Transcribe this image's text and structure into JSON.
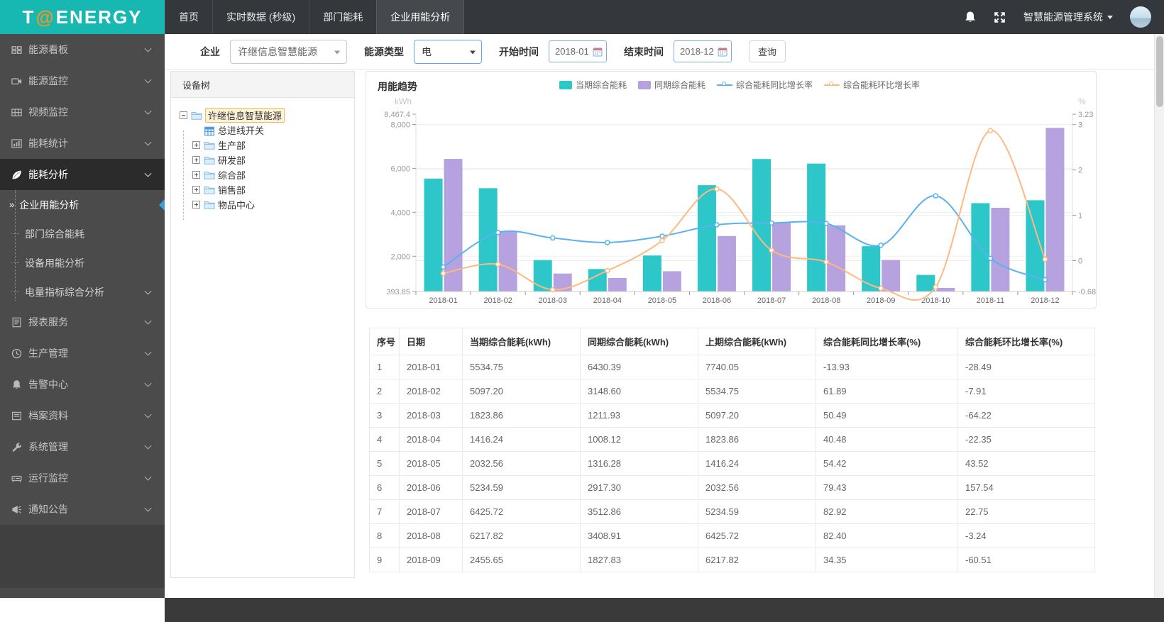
{
  "topbar": {
    "logo_t": "T",
    "logo_at": "@",
    "logo_rest": "ENERGY",
    "tabs": [
      {
        "label": "首页",
        "active": false
      },
      {
        "label": "实时数据 (秒级)",
        "active": false
      },
      {
        "label": "部门能耗",
        "active": false
      },
      {
        "label": "企业用能分析",
        "active": true
      }
    ],
    "system_name": "智慧能源管理系统"
  },
  "sidebar": {
    "items": [
      {
        "label": "能源看板",
        "icon": "dashboard",
        "chevron": true,
        "active": false
      },
      {
        "label": "能源监控",
        "icon": "camera",
        "chevron": true,
        "active": false
      },
      {
        "label": "视频监控",
        "icon": "film",
        "chevron": true,
        "active": false
      },
      {
        "label": "能耗统计",
        "icon": "stats",
        "chevron": true,
        "active": false
      },
      {
        "label": "能耗分析",
        "icon": "leaf",
        "chevron": true,
        "active": true,
        "children": [
          {
            "label": "企业用能分析",
            "active": true,
            "chevron": false
          },
          {
            "label": "部门综合能耗",
            "active": false,
            "chevron": false
          },
          {
            "label": "设备用能分析",
            "active": false,
            "chevron": false
          },
          {
            "label": "电量指标综合分析",
            "active": false,
            "chevron": true
          }
        ]
      },
      {
        "label": "报表服务",
        "icon": "report",
        "chevron": true,
        "active": false
      },
      {
        "label": "生产管理",
        "icon": "clock",
        "chevron": true,
        "active": false
      },
      {
        "label": "告警中心",
        "icon": "bell",
        "chevron": true,
        "active": false
      },
      {
        "label": "档案资料",
        "icon": "archive",
        "chevron": true,
        "active": false
      },
      {
        "label": "系统管理",
        "icon": "wrench",
        "chevron": true,
        "active": false
      },
      {
        "label": "运行监控",
        "icon": "drive",
        "chevron": true,
        "active": false
      },
      {
        "label": "通知公告",
        "icon": "megaphone",
        "chevron": true,
        "active": false
      }
    ]
  },
  "filters": {
    "company_label": "企业",
    "company_value": "许继信息智慧能源",
    "energy_label": "能源类型",
    "energy_value": "电",
    "start_label": "开始时间",
    "start_value": "2018-01",
    "end_label": "结束时间",
    "end_value": "2018-12",
    "query_label": "查询"
  },
  "tree": {
    "header": "设备树",
    "nodes": [
      {
        "label": "许继信息智慧能源",
        "level": 0,
        "expander": "minus",
        "icon": "folder",
        "selected": true
      },
      {
        "label": "总进线开关",
        "level": 1,
        "expander": "none",
        "icon": "meter",
        "selected": false
      },
      {
        "label": "生产部",
        "level": 1,
        "expander": "plus",
        "icon": "folder",
        "selected": false
      },
      {
        "label": "研发部",
        "level": 1,
        "expander": "plus",
        "icon": "folder",
        "selected": false
      },
      {
        "label": "综合部",
        "level": 1,
        "expander": "plus",
        "icon": "folder",
        "selected": false
      },
      {
        "label": "销售部",
        "level": 1,
        "expander": "plus",
        "icon": "folder",
        "selected": false
      },
      {
        "label": "物品中心",
        "level": 1,
        "expander": "plus",
        "icon": "folder",
        "selected": false
      }
    ]
  },
  "chart": {
    "title": "用能趋势"
  },
  "chart_data": {
    "type": "bar+line",
    "title": "用能趋势",
    "categories": [
      "2018-01",
      "2018-02",
      "2018-03",
      "2018-04",
      "2018-05",
      "2018-06",
      "2018-07",
      "2018-08",
      "2018-09",
      "2018-10",
      "2018-11",
      "2018-12"
    ],
    "series": [
      {
        "name": "当期综合能耗",
        "type": "bar",
        "axis": "left",
        "color": "#2ec7c9",
        "values": [
          5534.75,
          5097.2,
          1823.86,
          1416.24,
          2032.56,
          5234.59,
          6425.72,
          6217.82,
          2455.65,
          1150,
          4416,
          4549
        ]
      },
      {
        "name": "同期综合能耗",
        "type": "bar",
        "axis": "left",
        "color": "#b6a2de",
        "values": [
          6430.39,
          3148.6,
          1211.93,
          1008.12,
          1316.28,
          2917.3,
          3512.86,
          3408.91,
          1827.83,
          556,
          4206,
          7843
        ]
      },
      {
        "name": "综合能耗同比增长率",
        "type": "line",
        "axis": "right",
        "color": "#5ab1ef",
        "values": [
          -0.14,
          0.62,
          0.5,
          0.4,
          0.54,
          0.79,
          0.83,
          0.82,
          0.34,
          1.43,
          0.05,
          -0.42
        ]
      },
      {
        "name": "综合能耗环比增长率",
        "type": "line",
        "axis": "right",
        "color": "#ffb980",
        "values": [
          -0.28,
          -0.08,
          -0.64,
          -0.22,
          0.44,
          1.58,
          0.23,
          -0.03,
          -0.61,
          -0.58,
          2.87,
          0.03
        ]
      }
    ],
    "left_axis": {
      "unit": "kWh",
      "min": 393.85,
      "max": 8467.4,
      "ticks": [
        {
          "v": 8467.4,
          "label": "8,467.4"
        },
        {
          "v": 8000,
          "label": "8,000"
        },
        {
          "v": 6000,
          "label": "6,000"
        },
        {
          "v": 4000,
          "label": "4,000"
        },
        {
          "v": 2000,
          "label": "2,000"
        },
        {
          "v": 393.85,
          "label": "393.85"
        }
      ]
    },
    "right_axis": {
      "unit": "%",
      "min": -0.68,
      "max": 3.23,
      "ticks": [
        {
          "v": 3.23,
          "label": "3.23"
        },
        {
          "v": 3,
          "label": "3"
        },
        {
          "v": 2,
          "label": "2"
        },
        {
          "v": 1,
          "label": "1"
        },
        {
          "v": 0,
          "label": "0"
        },
        {
          "v": -0.68,
          "label": "-0.68"
        }
      ]
    },
    "grid": true,
    "legend_position": "top"
  },
  "table": {
    "headers": [
      "序号",
      "日期",
      "当期综合能耗(kWh)",
      "同期综合能耗(kWh)",
      "上期综合能耗(kWh)",
      "综合能耗同比增长率(%)",
      "综合能耗环比增长率(%)"
    ],
    "rows": [
      [
        "1",
        "2018-01",
        "5534.75",
        "6430.39",
        "7740.05",
        "-13.93",
        "-28.49"
      ],
      [
        "2",
        "2018-02",
        "5097.20",
        "3148.60",
        "5534.75",
        "61.89",
        "-7.91"
      ],
      [
        "3",
        "2018-03",
        "1823.86",
        "1211.93",
        "5097.20",
        "50.49",
        "-64.22"
      ],
      [
        "4",
        "2018-04",
        "1416.24",
        "1008.12",
        "1823.86",
        "40.48",
        "-22.35"
      ],
      [
        "5",
        "2018-05",
        "2032.56",
        "1316.28",
        "1416.24",
        "54.42",
        "43.52"
      ],
      [
        "6",
        "2018-06",
        "5234.59",
        "2917.30",
        "2032.56",
        "79.43",
        "157.54"
      ],
      [
        "7",
        "2018-07",
        "6425.72",
        "3512.86",
        "5234.59",
        "82.92",
        "22.75"
      ],
      [
        "8",
        "2018-08",
        "6217.82",
        "3408.91",
        "6425.72",
        "82.40",
        "-3.24"
      ],
      [
        "9",
        "2018-09",
        "2455.65",
        "1827.83",
        "6217.82",
        "34.35",
        "-60.51"
      ]
    ]
  }
}
